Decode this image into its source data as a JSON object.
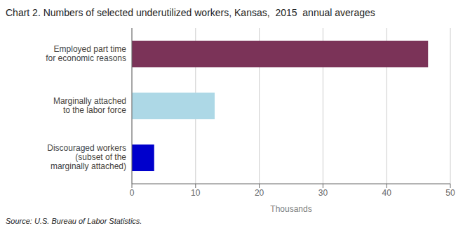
{
  "chart_data": {
    "type": "bar",
    "orientation": "horizontal",
    "title": "Chart 2. Numbers of selected underutilized workers, Kansas,  2015  annual averages",
    "categories": [
      "Discouraged workers\n(subset of the\nmarginally attached)",
      "Marginally attached\nto the labor force",
      "Employed part time\nfor economic reasons"
    ],
    "values": [
      3.5,
      13.0,
      46.5
    ],
    "colors": [
      "#0000cc",
      "#add8e6",
      "#7b3358"
    ],
    "xlim": [
      0,
      50
    ],
    "xticks": [
      0,
      10,
      20,
      30,
      40,
      50
    ],
    "xlabel": "Thousands",
    "grid": true,
    "annotations": [
      "Source: U.S. Bureau of Labor Statistics."
    ]
  }
}
